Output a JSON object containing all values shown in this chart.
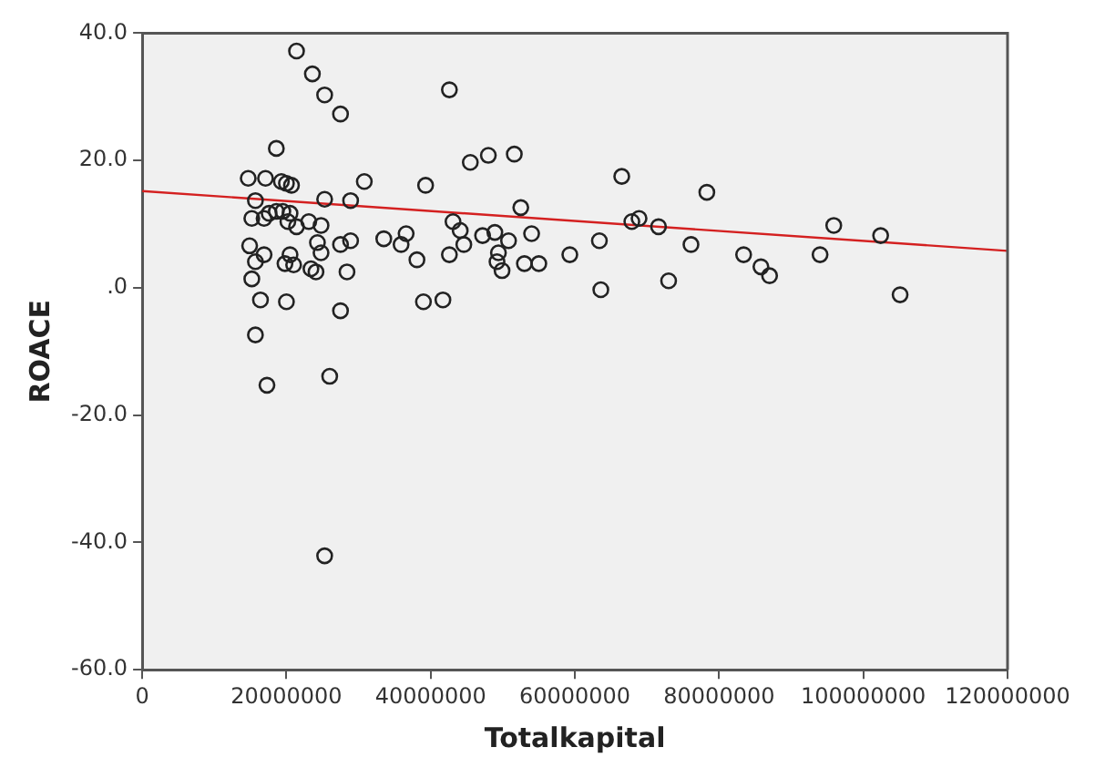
{
  "chart_data": {
    "type": "scatter",
    "xlabel": "Totalkapital",
    "ylabel": "ROACE",
    "xlim": [
      0,
      120000000
    ],
    "xticks": [
      0,
      20000000,
      40000000,
      60000000,
      80000000,
      100000000,
      120000000
    ],
    "ylim": [
      -60,
      40
    ],
    "yticks": [
      {
        "value": -60,
        "label": "-60.0"
      },
      {
        "value": -40,
        "label": "-40.0"
      },
      {
        "value": -20,
        "label": "-20.0"
      },
      {
        "value": 0,
        "label": ".0"
      },
      {
        "value": 20,
        "label": "20.0"
      },
      {
        "value": 40,
        "label": "40.0"
      }
    ],
    "grid": false,
    "legend": false,
    "series": [
      {
        "marker": "circle",
        "color": "#222222",
        "x": [
          21400000,
          23600000,
          25300000,
          27500000,
          42600000,
          18600000,
          45500000,
          48000000,
          51600000,
          14700000,
          17100000,
          20000000,
          20700000,
          19300000,
          30800000,
          39300000,
          66500000,
          78300000,
          25300000,
          28900000,
          52500000,
          15700000,
          15200000,
          17600000,
          18600000,
          19500000,
          20500000,
          16900000,
          20200000,
          21400000,
          23100000,
          24800000,
          43100000,
          44100000,
          44600000,
          47200000,
          67900000,
          68900000,
          71600000,
          95900000,
          102400000,
          14900000,
          16900000,
          20500000,
          24300000,
          24800000,
          27500000,
          28900000,
          33500000,
          35900000,
          36600000,
          38100000,
          42600000,
          48900000,
          49400000,
          49200000,
          49900000,
          50800000,
          53000000,
          54000000,
          55000000,
          59300000,
          63400000,
          76100000,
          83400000,
          85800000,
          87000000,
          94000000,
          21000000,
          23400000,
          24100000,
          19800000,
          28400000,
          15700000,
          15200000,
          16400000,
          20000000,
          27500000,
          39000000,
          41700000,
          63600000,
          73000000,
          105100000,
          15700000,
          17300000,
          26000000,
          25300000
        ],
        "values": [
          37.2,
          33.6,
          30.3,
          27.3,
          31.1,
          21.9,
          19.7,
          20.8,
          21.0,
          17.2,
          17.2,
          16.4,
          16.1,
          16.7,
          16.7,
          16.1,
          17.5,
          15.0,
          13.9,
          13.7,
          12.6,
          13.7,
          10.9,
          11.7,
          12.0,
          12.0,
          11.7,
          10.9,
          10.4,
          9.6,
          10.4,
          9.8,
          10.4,
          9.0,
          6.8,
          8.2,
          10.4,
          10.9,
          9.6,
          9.8,
          8.2,
          6.6,
          5.2,
          5.2,
          7.1,
          5.5,
          6.8,
          7.4,
          7.7,
          6.8,
          8.5,
          4.4,
          5.2,
          8.7,
          5.5,
          4.1,
          2.7,
          7.4,
          3.8,
          8.5,
          3.8,
          5.2,
          7.4,
          6.8,
          5.2,
          3.3,
          1.9,
          5.2,
          3.6,
          3.0,
          2.5,
          3.8,
          2.5,
          4.1,
          1.4,
          -1.9,
          -2.2,
          -3.6,
          -2.2,
          -1.9,
          -0.3,
          1.1,
          -1.1,
          -7.4,
          -15.3,
          -13.9,
          -42.1
        ]
      },
      {
        "type": "line",
        "color": "#d42020",
        "x": [
          0,
          120000000
        ],
        "values": [
          15.2,
          5.8
        ]
      }
    ]
  }
}
